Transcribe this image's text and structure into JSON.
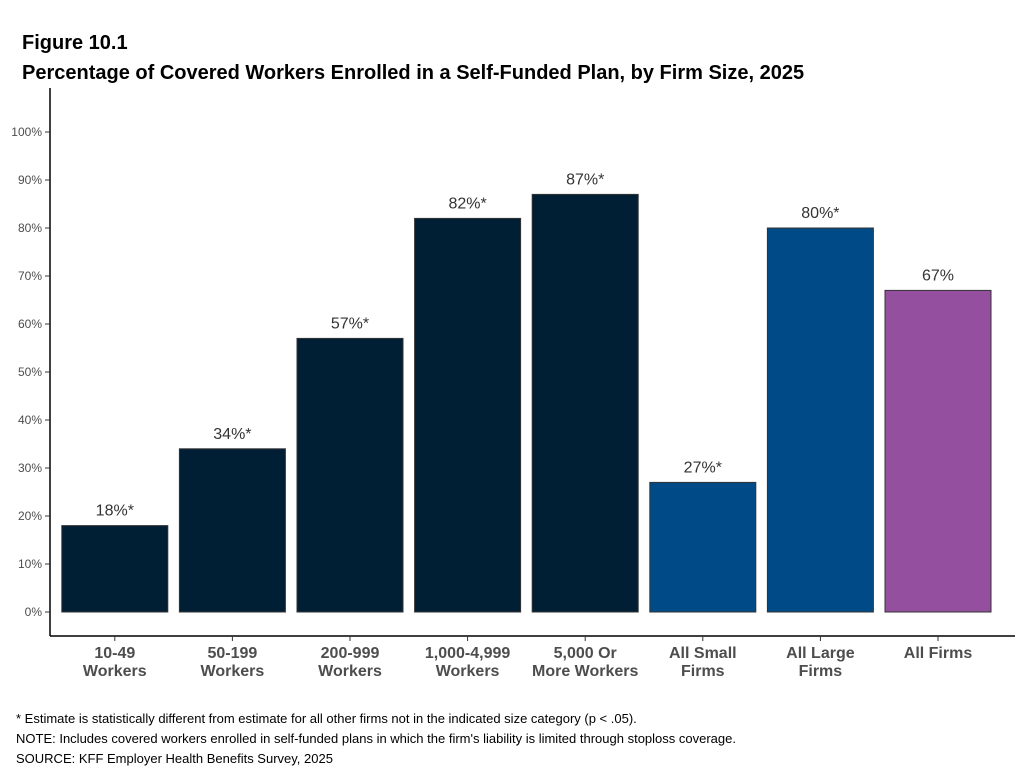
{
  "figure": {
    "label": "Figure 10.1",
    "title": "Percentage of Covered Workers Enrolled in a Self-Funded Plan, by Firm Size, 2025"
  },
  "chart_data": {
    "type": "bar",
    "title": "Percentage of Covered Workers Enrolled in a Self-Funded Plan, by Firm Size, 2025",
    "xlabel": "",
    "ylabel": "",
    "ylim": [
      0,
      100
    ],
    "yticks": [
      "0%",
      "10%",
      "20%",
      "30%",
      "40%",
      "50%",
      "60%",
      "70%",
      "80%",
      "90%",
      "100%"
    ],
    "grid": false,
    "categories": [
      [
        "10-49",
        "Workers"
      ],
      [
        "50-199",
        "Workers"
      ],
      [
        "200-999",
        "Workers"
      ],
      [
        "1,000-4,999",
        "Workers"
      ],
      [
        "5,000 Or",
        "More Workers"
      ],
      [
        "All Small",
        "Firms"
      ],
      [
        "All Large",
        "Firms"
      ],
      [
        "All Firms"
      ]
    ],
    "values": [
      18,
      34,
      57,
      82,
      87,
      27,
      80,
      67
    ],
    "labels": [
      "18%*",
      "34%*",
      "57%*",
      "82%*",
      "87%*",
      "27%*",
      "80%*",
      "67%"
    ],
    "colors": [
      "#001f35",
      "#001f35",
      "#001f35",
      "#001f35",
      "#001f35",
      "#004b87",
      "#004b87",
      "#94509e"
    ]
  },
  "notes": [
    "* Estimate is statistically different from estimate for all other firms not in the indicated size category (p < .05).",
    "NOTE: Includes covered workers enrolled in self-funded plans in which the firm's liability is limited through stoploss coverage.",
    "SOURCE: KFF Employer Health Benefits Survey, 2025"
  ]
}
